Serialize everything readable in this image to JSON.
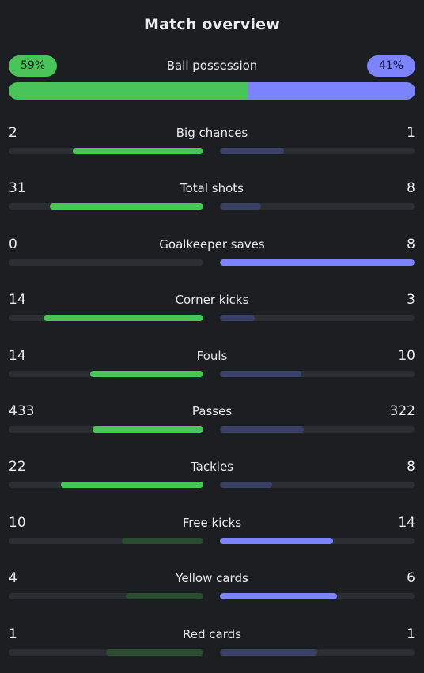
{
  "title": "Match overview",
  "colors": {
    "home_strong": "#48c459",
    "home_weak": "#2a4c30",
    "away_strong": "#7b83ff",
    "away_weak": "#3b4066",
    "background": "#1b1f22"
  },
  "possession": {
    "label": "Ball possession",
    "home": "59%",
    "away": "41%",
    "home_fraction": 0.59,
    "away_fraction": 0.41
  },
  "stats": [
    {
      "label": "Big chances",
      "home": "2",
      "away": "1",
      "home_fill": 0.67,
      "away_fill": 0.33
    },
    {
      "label": "Total shots",
      "home": "31",
      "away": "8",
      "home_fill": 0.79,
      "away_fill": 0.21
    },
    {
      "label": "Goalkeeper saves",
      "home": "0",
      "away": "8",
      "home_fill": 0.0,
      "away_fill": 1.0
    },
    {
      "label": "Corner kicks",
      "home": "14",
      "away": "3",
      "home_fill": 0.82,
      "away_fill": 0.18
    },
    {
      "label": "Fouls",
      "home": "14",
      "away": "10",
      "home_fill": 0.58,
      "away_fill": 0.42
    },
    {
      "label": "Passes",
      "home": "433",
      "away": "322",
      "home_fill": 0.57,
      "away_fill": 0.43
    },
    {
      "label": "Tackles",
      "home": "22",
      "away": "8",
      "home_fill": 0.73,
      "away_fill": 0.27
    },
    {
      "label": "Free kicks",
      "home": "10",
      "away": "14",
      "home_fill": 0.42,
      "away_fill": 0.58
    },
    {
      "label": "Yellow cards",
      "home": "4",
      "away": "6",
      "home_fill": 0.4,
      "away_fill": 0.6
    },
    {
      "label": "Red cards",
      "home": "1",
      "away": "1",
      "home_fill": 0.5,
      "away_fill": 0.5
    }
  ]
}
